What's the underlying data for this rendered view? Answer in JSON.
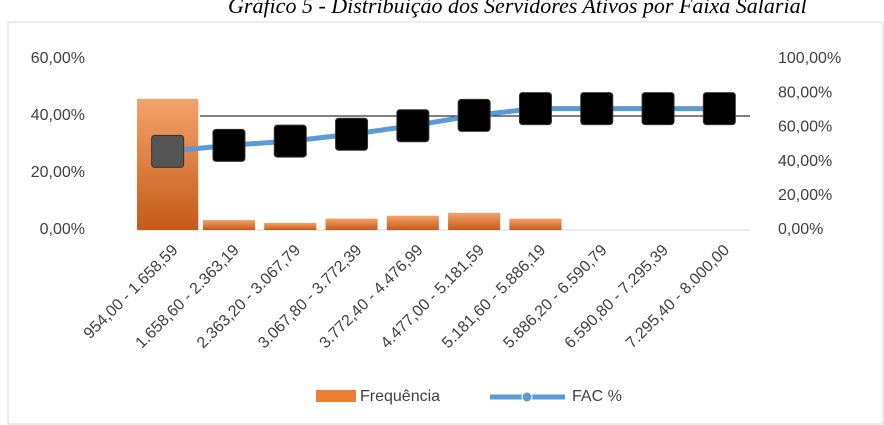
{
  "chart_data": {
    "type": "bar-line",
    "title": "Gráfico 5 - Distribuição dos Servidores Ativos por Faixa Salarial",
    "categories": [
      "954,00 - 1.658,59",
      "1.658,60 - 2.363,19",
      "2.363,20 - 3.067,79",
      "3.067,80 - 3.772,39",
      "3.772,40 - 4.476,99",
      "4.477,00 - 5.181,59",
      "5.181,60 - 5.886,19",
      "5.886,20 - 6.590,79",
      "6.590,80 - 7.295,39",
      "7.295,40 - 8.000,00"
    ],
    "series": [
      {
        "name": "Frequência",
        "color": "#ed7d31",
        "values": [
          46,
          3.5,
          2.5,
          4,
          5,
          6,
          4,
          0,
          0,
          0
        ]
      },
      {
        "name": "FAC %",
        "color": "#5b9bd5",
        "axis": "y2",
        "values": [
          46,
          49.5,
          52,
          56,
          61,
          67,
          71,
          71,
          71,
          71
        ]
      }
    ],
    "ylim": [
      0,
      60
    ],
    "yticks": [
      {
        "value": 0,
        "label": "0,00%"
      },
      {
        "value": 20,
        "label": "20,00%"
      },
      {
        "value": 40,
        "label": "40,00%"
      },
      {
        "value": 60,
        "label": "60,00%"
      }
    ],
    "y2lim": [
      0,
      100
    ],
    "y2ticks": [
      {
        "value": 0,
        "label": "0,00%"
      },
      {
        "value": 20,
        "label": "20,00%"
      },
      {
        "value": 40,
        "label": "40,00%"
      },
      {
        "value": 60,
        "label": "60,00%"
      },
      {
        "value": 80,
        "label": "80,00%"
      },
      {
        "value": 100,
        "label": "100,00%"
      }
    ],
    "legend": "bottom"
  }
}
